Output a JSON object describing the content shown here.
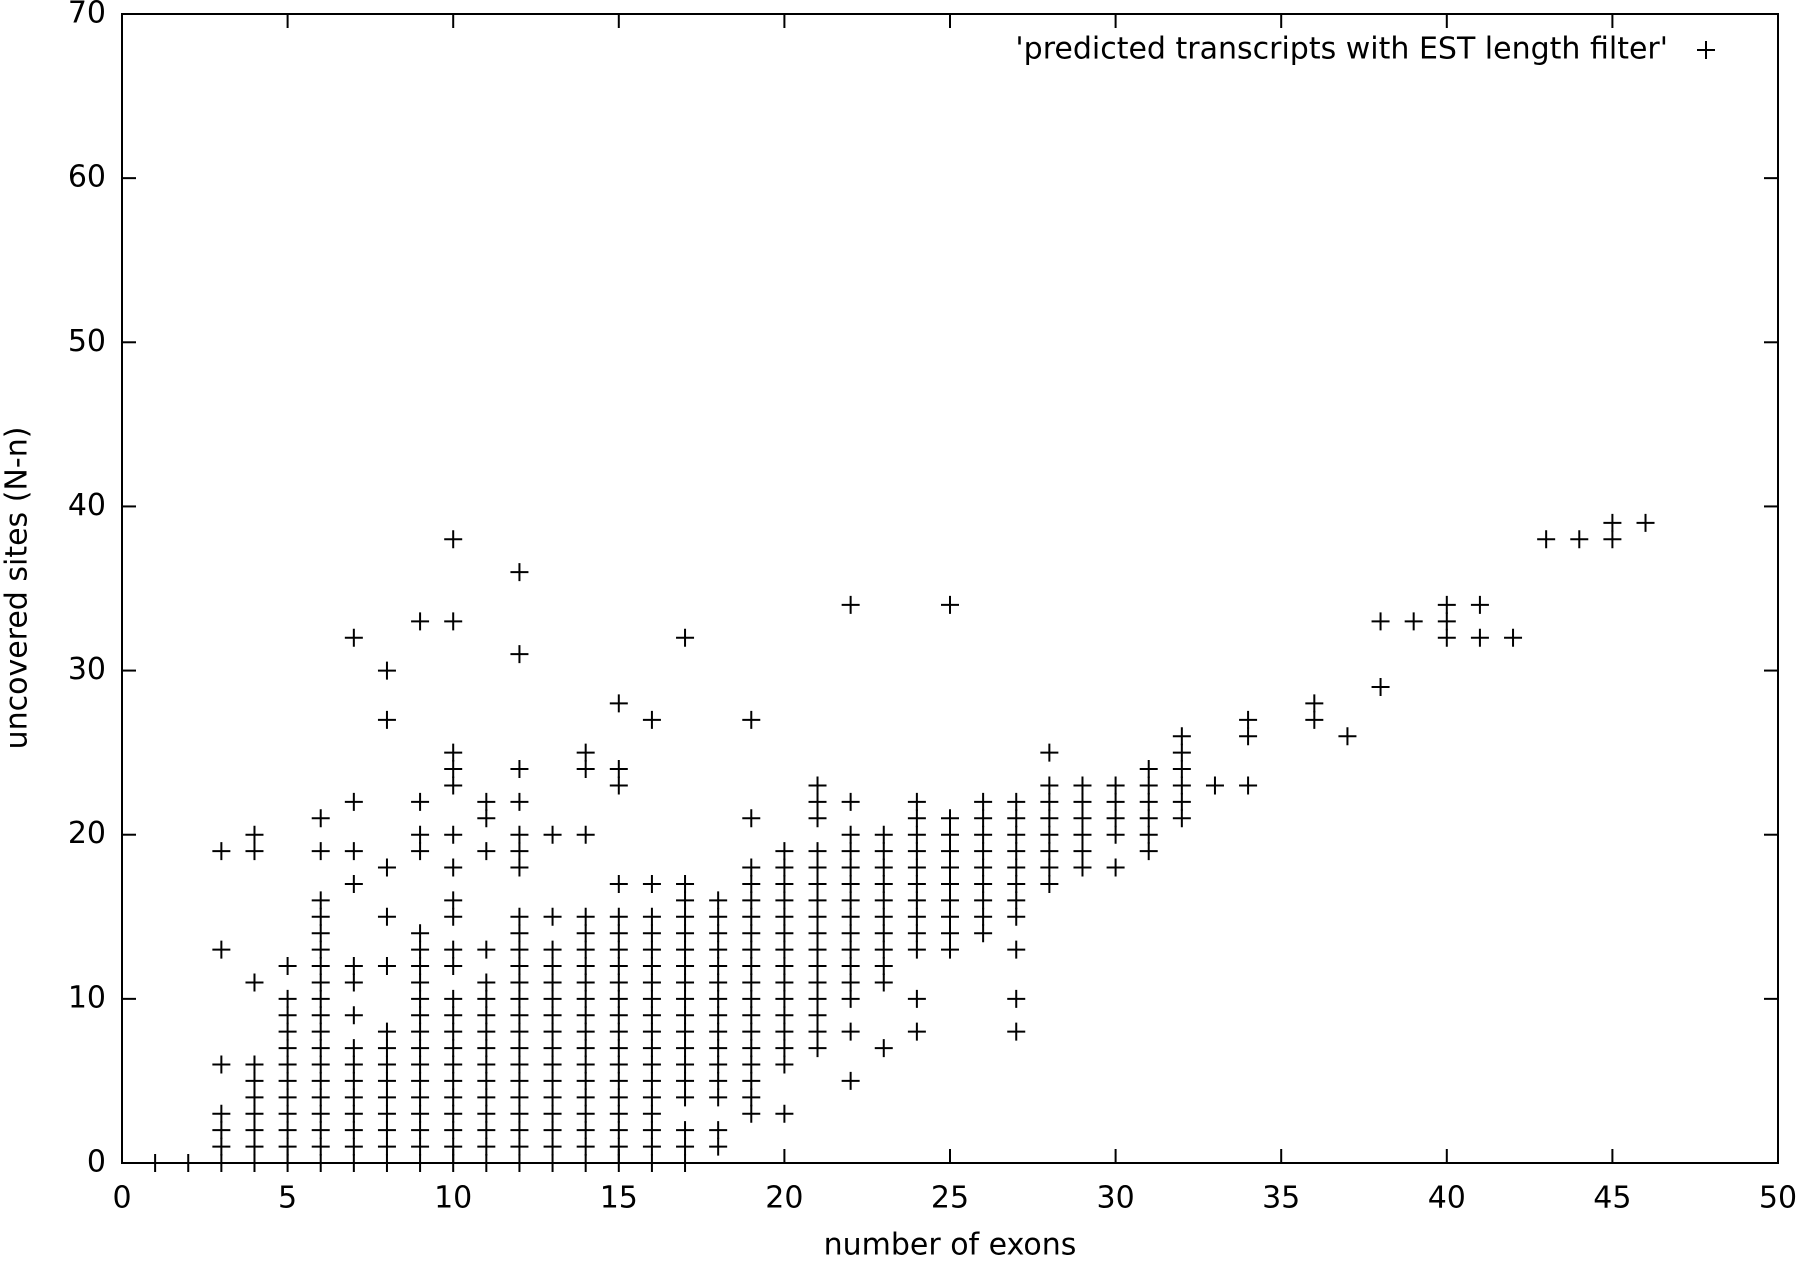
{
  "chart_data": {
    "type": "scatter",
    "x_label": "number of exons",
    "y_label": "uncovered sites (N-n)",
    "xlim": [
      0,
      50
    ],
    "ylim": [
      0,
      70
    ],
    "xticks": [
      0,
      5,
      10,
      15,
      20,
      25,
      30,
      35,
      40,
      45,
      50
    ],
    "yticks": [
      0,
      10,
      20,
      30,
      40,
      50,
      60,
      70
    ],
    "grid": false,
    "legend": "top-right",
    "marker": "+",
    "x": [
      1,
      2,
      3,
      4,
      5,
      6,
      7,
      8,
      9,
      10,
      11,
      12,
      13,
      14,
      15,
      16,
      17,
      18,
      19,
      20,
      21,
      22,
      23,
      24,
      25,
      26,
      27,
      28,
      29,
      30,
      31,
      32,
      33,
      34,
      36,
      37,
      38,
      39,
      40,
      41,
      42,
      43,
      44,
      45,
      46
    ],
    "series": [
      {
        "name": "'predicted transcripts with EST length filter'",
        "color": "#000000",
        "values": [
          [
            0
          ],
          [
            0
          ],
          [
            0,
            1,
            2,
            3,
            6,
            13,
            19
          ],
          [
            0,
            1,
            2,
            3,
            4,
            5,
            6,
            11,
            19,
            20
          ],
          [
            0,
            1,
            2,
            3,
            4,
            5,
            6,
            7,
            8,
            9,
            10,
            12
          ],
          [
            0,
            1,
            2,
            3,
            4,
            5,
            6,
            7,
            8,
            9,
            10,
            11,
            12,
            13,
            14,
            15,
            16,
            19,
            21
          ],
          [
            0,
            1,
            2,
            3,
            4,
            5,
            6,
            7,
            9,
            11,
            12,
            17,
            19,
            22,
            32
          ],
          [
            0,
            1,
            2,
            3,
            4,
            5,
            6,
            7,
            8,
            12,
            15,
            18,
            27,
            30
          ],
          [
            0,
            1,
            2,
            3,
            4,
            5,
            6,
            7,
            8,
            9,
            10,
            11,
            12,
            13,
            14,
            19,
            20,
            22,
            33
          ],
          [
            0,
            1,
            2,
            3,
            4,
            5,
            6,
            7,
            8,
            9,
            10,
            12,
            13,
            15,
            16,
            18,
            20,
            23,
            24,
            25,
            33,
            38
          ],
          [
            0,
            1,
            2,
            3,
            4,
            5,
            6,
            7,
            8,
            9,
            10,
            11,
            13,
            19,
            21,
            22
          ],
          [
            0,
            1,
            2,
            3,
            4,
            5,
            6,
            7,
            8,
            9,
            10,
            11,
            12,
            13,
            14,
            15,
            18,
            19,
            20,
            22,
            24,
            31,
            36
          ],
          [
            0,
            1,
            2,
            3,
            4,
            5,
            6,
            7,
            8,
            9,
            10,
            11,
            12,
            13,
            15,
            20
          ],
          [
            0,
            1,
            2,
            3,
            4,
            5,
            6,
            7,
            8,
            9,
            10,
            11,
            12,
            13,
            14,
            15,
            20,
            24,
            25
          ],
          [
            0,
            1,
            2,
            3,
            4,
            5,
            6,
            7,
            8,
            9,
            10,
            11,
            12,
            13,
            14,
            15,
            17,
            23,
            24,
            28
          ],
          [
            0,
            1,
            2,
            3,
            4,
            5,
            6,
            7,
            8,
            9,
            10,
            11,
            12,
            13,
            14,
            15,
            17,
            27
          ],
          [
            0,
            1,
            2,
            4,
            5,
            6,
            7,
            8,
            9,
            10,
            11,
            12,
            13,
            14,
            15,
            16,
            17,
            32
          ],
          [
            1,
            2,
            4,
            5,
            6,
            7,
            8,
            9,
            10,
            11,
            12,
            13,
            14,
            15,
            16
          ],
          [
            3,
            4,
            5,
            6,
            7,
            8,
            9,
            10,
            11,
            12,
            13,
            14,
            15,
            16,
            17,
            18,
            21,
            27
          ],
          [
            3,
            6,
            7,
            8,
            9,
            10,
            11,
            12,
            13,
            14,
            15,
            16,
            17,
            18,
            19
          ],
          [
            7,
            8,
            9,
            10,
            11,
            12,
            13,
            14,
            15,
            16,
            17,
            18,
            19,
            21,
            22,
            23
          ],
          [
            5,
            8,
            10,
            11,
            12,
            13,
            14,
            15,
            16,
            17,
            18,
            19,
            20,
            22,
            34
          ],
          [
            7,
            11,
            12,
            13,
            14,
            15,
            16,
            17,
            18,
            19,
            20
          ],
          [
            8,
            10,
            13,
            14,
            15,
            16,
            17,
            18,
            19,
            20,
            21,
            22
          ],
          [
            13,
            14,
            15,
            16,
            17,
            18,
            19,
            20,
            21,
            34
          ],
          [
            14,
            15,
            16,
            17,
            18,
            19,
            20,
            21,
            22
          ],
          [
            8,
            10,
            13,
            15,
            16,
            17,
            18,
            19,
            20,
            21,
            22
          ],
          [
            17,
            18,
            19,
            20,
            21,
            22,
            23,
            25
          ],
          [
            18,
            19,
            20,
            21,
            22,
            23
          ],
          [
            18,
            20,
            21,
            22,
            23
          ],
          [
            19,
            20,
            21,
            22,
            23,
            24
          ],
          [
            21,
            22,
            23,
            24,
            25,
            26
          ],
          [
            23
          ],
          [
            23,
            26,
            27
          ],
          [
            27,
            28
          ],
          [
            26
          ],
          [
            29,
            33
          ],
          [
            33
          ],
          [
            32,
            33,
            34
          ],
          [
            32,
            34
          ],
          [
            32
          ],
          [
            38
          ],
          [
            38
          ],
          [
            38,
            39
          ],
          [
            39
          ]
        ]
      }
    ]
  }
}
